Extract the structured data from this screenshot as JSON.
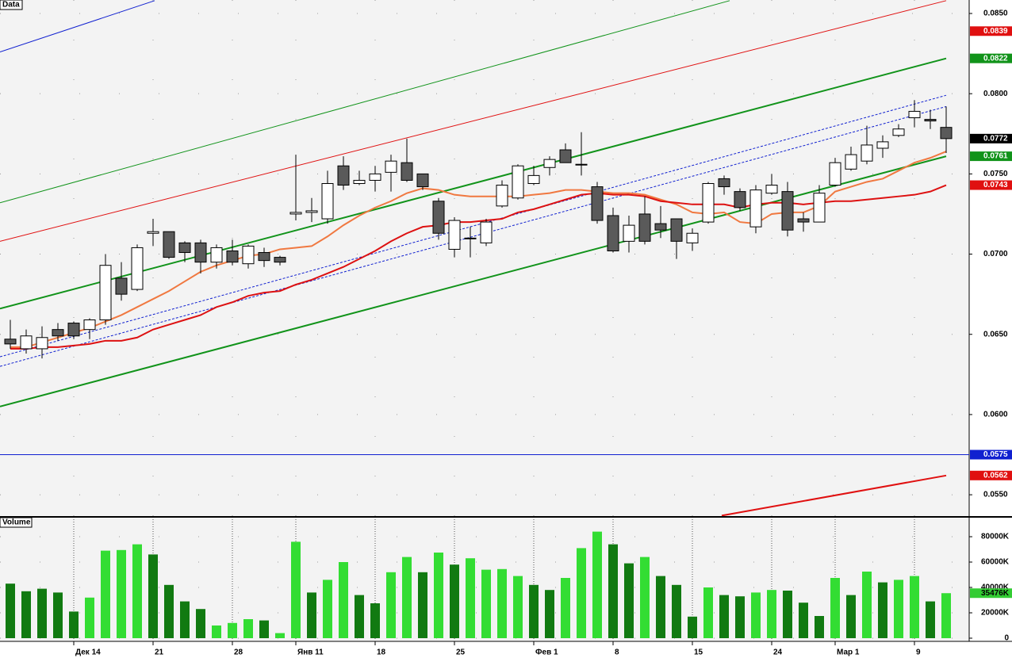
{
  "chart_data": [
    {
      "type": "candlestick",
      "title": "Data",
      "xlim": [
        -0.65,
        60.45
      ],
      "xticks": [
        {
          "value": 4,
          "label": "Дек 14"
        },
        {
          "value": 9,
          "label": "21"
        },
        {
          "value": 14,
          "label": "28"
        },
        {
          "value": 18,
          "label": "Янв 11"
        },
        {
          "value": 23,
          "label": "18"
        },
        {
          "value": 28,
          "label": "25"
        },
        {
          "value": 33,
          "label": "Фев 1"
        },
        {
          "value": 38,
          "label": "8"
        },
        {
          "value": 43,
          "label": "15"
        },
        {
          "value": 48,
          "label": "24"
        },
        {
          "value": 52,
          "label": "Мар 1"
        },
        {
          "value": 57,
          "label": "9"
        }
      ],
      "ylim": [
        0.05367,
        0.08584
      ],
      "yticks": [
        {
          "value": 0.085,
          "label": "0.0850"
        },
        {
          "value": 0.08,
          "label": "0.0800"
        },
        {
          "value": 0.075,
          "label": "0.0750"
        },
        {
          "value": 0.07,
          "label": "0.0700"
        },
        {
          "value": 0.065,
          "label": "0.0650"
        },
        {
          "value": 0.06,
          "label": "0.0600"
        },
        {
          "value": 0.055,
          "label": "0.0550"
        }
      ],
      "grid": true,
      "up_color": "#ffffff",
      "down_color": "#5a5a5a",
      "open": [
        0.0647,
        0.0641,
        0.0641,
        0.0653,
        0.0657,
        0.0653,
        0.0659,
        0.0685,
        0.0678,
        0.0713,
        0.0714,
        0.0707,
        0.0707,
        0.0695,
        0.0702,
        0.0694,
        0.0701,
        0.0698,
        0.0725,
        0.0726,
        0.0722,
        0.0755,
        0.0744,
        0.0746,
        0.0751,
        0.0757,
        0.075,
        0.0733,
        0.0703,
        0.071,
        0.0707,
        0.073,
        0.0735,
        0.0744,
        0.0754,
        0.0765,
        0.0756,
        0.0742,
        0.0724,
        0.0708,
        0.0725,
        0.0719,
        0.0722,
        0.0707,
        0.072,
        0.0747,
        0.0739,
        0.0717,
        0.0738,
        0.0739,
        0.0722,
        0.072,
        0.0743,
        0.0753,
        0.0758,
        0.0766,
        0.0774,
        0.0785,
        0.0784,
        0.0779
      ],
      "high": [
        0.0659,
        0.0653,
        0.0655,
        0.0657,
        0.0658,
        0.066,
        0.07,
        0.0695,
        0.0706,
        0.0722,
        0.0714,
        0.0708,
        0.0709,
        0.0706,
        0.0709,
        0.0706,
        0.0704,
        0.0699,
        0.0762,
        0.0735,
        0.0752,
        0.0761,
        0.0752,
        0.0755,
        0.0762,
        0.0772,
        0.075,
        0.0735,
        0.0723,
        0.0717,
        0.0722,
        0.0746,
        0.0756,
        0.0755,
        0.0761,
        0.0769,
        0.0776,
        0.0745,
        0.0729,
        0.0724,
        0.0736,
        0.073,
        0.0722,
        0.0716,
        0.0745,
        0.0749,
        0.0741,
        0.0743,
        0.075,
        0.0745,
        0.0726,
        0.0743,
        0.076,
        0.0767,
        0.078,
        0.0774,
        0.0781,
        0.0796,
        0.079,
        0.0792
      ],
      "low": [
        0.0641,
        0.0638,
        0.0635,
        0.0646,
        0.0647,
        0.0647,
        0.0656,
        0.0671,
        0.0677,
        0.0705,
        0.0697,
        0.0695,
        0.0688,
        0.0691,
        0.0693,
        0.0691,
        0.0692,
        0.0693,
        0.0721,
        0.072,
        0.0719,
        0.074,
        0.0743,
        0.0739,
        0.0739,
        0.0745,
        0.074,
        0.0709,
        0.0698,
        0.0698,
        0.0705,
        0.0729,
        0.0734,
        0.0743,
        0.0749,
        0.0757,
        0.0749,
        0.0719,
        0.0701,
        0.0701,
        0.0706,
        0.071,
        0.0697,
        0.0702,
        0.0719,
        0.0737,
        0.0727,
        0.0713,
        0.0737,
        0.0711,
        0.0714,
        0.072,
        0.0742,
        0.0752,
        0.0756,
        0.076,
        0.0773,
        0.0779,
        0.0778,
        0.0763
      ],
      "close": [
        0.0644,
        0.0649,
        0.0648,
        0.0649,
        0.0649,
        0.0659,
        0.0693,
        0.0675,
        0.0704,
        0.0714,
        0.0698,
        0.0701,
        0.0695,
        0.0704,
        0.0695,
        0.0705,
        0.0696,
        0.0695,
        0.0726,
        0.0727,
        0.0744,
        0.0743,
        0.0746,
        0.075,
        0.0758,
        0.0746,
        0.0742,
        0.0713,
        0.0721,
        0.071,
        0.072,
        0.0743,
        0.0755,
        0.0749,
        0.0759,
        0.0757,
        0.0756,
        0.0721,
        0.0702,
        0.0718,
        0.0708,
        0.0715,
        0.0708,
        0.0713,
        0.0744,
        0.0742,
        0.0729,
        0.074,
        0.0743,
        0.0715,
        0.072,
        0.0738,
        0.0757,
        0.0762,
        0.0768,
        0.077,
        0.0778,
        0.0789,
        0.0783,
        0.0772
      ],
      "overlays": [
        {
          "color": "#f07840",
          "values": [
            0.0642,
            0.0642,
            0.0645,
            0.0648,
            0.0651,
            0.0654,
            0.0658,
            0.0662,
            0.0667,
            0.0672,
            0.0677,
            0.0683,
            0.0689,
            0.0693,
            0.0696,
            0.0699,
            0.07,
            0.0703,
            0.0704,
            0.0705,
            0.0711,
            0.0718,
            0.0724,
            0.0729,
            0.0733,
            0.0738,
            0.0741,
            0.074,
            0.0737,
            0.0736,
            0.0736,
            0.0736,
            0.0736,
            0.0737,
            0.0738,
            0.074,
            0.074,
            0.0739,
            0.0738,
            0.0738,
            0.0737,
            0.0734,
            0.0731,
            0.0726,
            0.0725,
            0.0726,
            0.072,
            0.0719,
            0.0725,
            0.0726,
            0.0726,
            0.073,
            0.0739,
            0.0742,
            0.0745,
            0.0747,
            0.0752,
            0.0757,
            0.076,
            0.0764
          ]
        },
        {
          "color": "#dd1111",
          "values": [
            0.0641,
            0.0641,
            0.0642,
            0.0642,
            0.0643,
            0.0644,
            0.0646,
            0.0646,
            0.0648,
            0.0653,
            0.0656,
            0.0659,
            0.0662,
            0.0667,
            0.067,
            0.0674,
            0.0676,
            0.0677,
            0.0681,
            0.0684,
            0.0688,
            0.0692,
            0.0697,
            0.0702,
            0.0708,
            0.0713,
            0.0717,
            0.0718,
            0.072,
            0.072,
            0.0721,
            0.0722,
            0.0726,
            0.0728,
            0.0731,
            0.0734,
            0.0737,
            0.0738,
            0.0737,
            0.0737,
            0.0736,
            0.0733,
            0.0732,
            0.0731,
            0.0731,
            0.0731,
            0.0729,
            0.0731,
            0.0732,
            0.0732,
            0.0731,
            0.0732,
            0.0733,
            0.0733,
            0.0734,
            0.0735,
            0.0736,
            0.0737,
            0.0739,
            0.0743
          ]
        }
      ],
      "lines": [
        {
          "from": [
            -0.65,
            0.0666
          ],
          "to": [
            59,
            0.0822
          ],
          "color": "#11931a",
          "width": 2,
          "dash": false
        },
        {
          "from": [
            -0.65,
            0.0605
          ],
          "to": [
            59,
            0.0761
          ],
          "color": "#11931a",
          "width": 2,
          "dash": false
        },
        {
          "from": [
            -0.65,
            0.0732
          ],
          "to": [
            45.35,
            0.0858
          ],
          "color": "#11931a",
          "width": 1,
          "dash": false
        },
        {
          "from": [
            -0.65,
            0.0708
          ],
          "to": [
            59,
            0.0858
          ],
          "color": "#e01010",
          "width": 1,
          "dash": false
        },
        {
          "from": [
            -0.65,
            0.0826
          ],
          "to": [
            9.1,
            0.0858
          ],
          "color": "#1020d0",
          "width": 1,
          "dash": false
        },
        {
          "from": [
            -0.65,
            0.0636
          ],
          "to": [
            59,
            0.0799
          ],
          "color": "#1020d0",
          "width": 1,
          "dash": true
        },
        {
          "from": [
            -0.65,
            0.063
          ],
          "to": [
            59,
            0.0792
          ],
          "color": "#1020d0",
          "width": 1,
          "dash": true
        },
        {
          "from": [
            -0.65,
            0.0575
          ],
          "to": [
            60.45,
            0.0575
          ],
          "color": "#1020d0",
          "width": 1,
          "dash": false
        },
        {
          "from": [
            44.85,
            0.0537
          ],
          "to": [
            59,
            0.0562
          ],
          "color": "#e01010",
          "width": 2,
          "dash": false
        }
      ],
      "markers": [
        {
          "value": 0.0839,
          "color": "#e01010"
        },
        {
          "value": 0.0822,
          "color": "#11931a"
        },
        {
          "value": 0.0772,
          "color": "#000000"
        },
        {
          "value": 0.0761,
          "color": "#11931a"
        },
        {
          "value": 0.0743,
          "color": "#e01010"
        },
        {
          "value": 0.0575,
          "color": "#1020d0"
        },
        {
          "value": 0.0562,
          "color": "#e01010"
        }
      ]
    },
    {
      "type": "bar",
      "title": "Volume",
      "ylim": [
        -1250,
        93750
      ],
      "yticks": [
        {
          "value": 80000,
          "label": "80000K"
        },
        {
          "value": 60000,
          "label": "60000K"
        },
        {
          "value": 40000,
          "label": "40000K"
        },
        {
          "value": 20000,
          "label": "20000K"
        },
        0
      ],
      "values": [
        43000,
        37000,
        39000,
        36000,
        21000,
        32000,
        69000,
        69500,
        74000,
        66000,
        42000,
        29000,
        23000,
        10000,
        12000,
        15000,
        14000,
        4000,
        76000,
        36000,
        46000,
        60000,
        34000,
        27500,
        52000,
        64000,
        52000,
        67500,
        58000,
        63000,
        54000,
        54500,
        49000,
        42000,
        38000,
        47500,
        71000,
        84000,
        74000,
        59000,
        64000,
        49000,
        42000,
        17000,
        40000,
        34000,
        33000,
        36000,
        38000,
        37500,
        28000,
        17500,
        47500,
        34000,
        52500,
        44000,
        46000,
        49000,
        29000,
        35476
      ],
      "colors": [
        "#117a11",
        "#117a11",
        "#117a11",
        "#117a11",
        "#117a11",
        "#33dd33",
        "#33dd33",
        "#33dd33",
        "#33dd33",
        "#117a11",
        "#117a11",
        "#117a11",
        "#117a11",
        "#33dd33",
        "#33dd33",
        "#33dd33",
        "#117a11",
        "#33dd33",
        "#33dd33",
        "#117a11",
        "#33dd33",
        "#33dd33",
        "#117a11",
        "#117a11",
        "#33dd33",
        "#33dd33",
        "#117a11",
        "#33dd33",
        "#117a11",
        "#33dd33",
        "#33dd33",
        "#33dd33",
        "#33dd33",
        "#117a11",
        "#117a11",
        "#33dd33",
        "#33dd33",
        "#33dd33",
        "#117a11",
        "#117a11",
        "#33dd33",
        "#117a11",
        "#117a11",
        "#117a11",
        "#33dd33",
        "#117a11",
        "#117a11",
        "#33dd33",
        "#33dd33",
        "#117a11",
        "#117a11",
        "#117a11",
        "#33dd33",
        "#117a11",
        "#33dd33",
        "#117a11",
        "#33dd33",
        "#33dd33",
        "#117a11",
        "#33dd33"
      ],
      "markers": [
        {
          "value": 35476,
          "label": "35476K",
          "color": "#33cc33"
        }
      ]
    }
  ]
}
